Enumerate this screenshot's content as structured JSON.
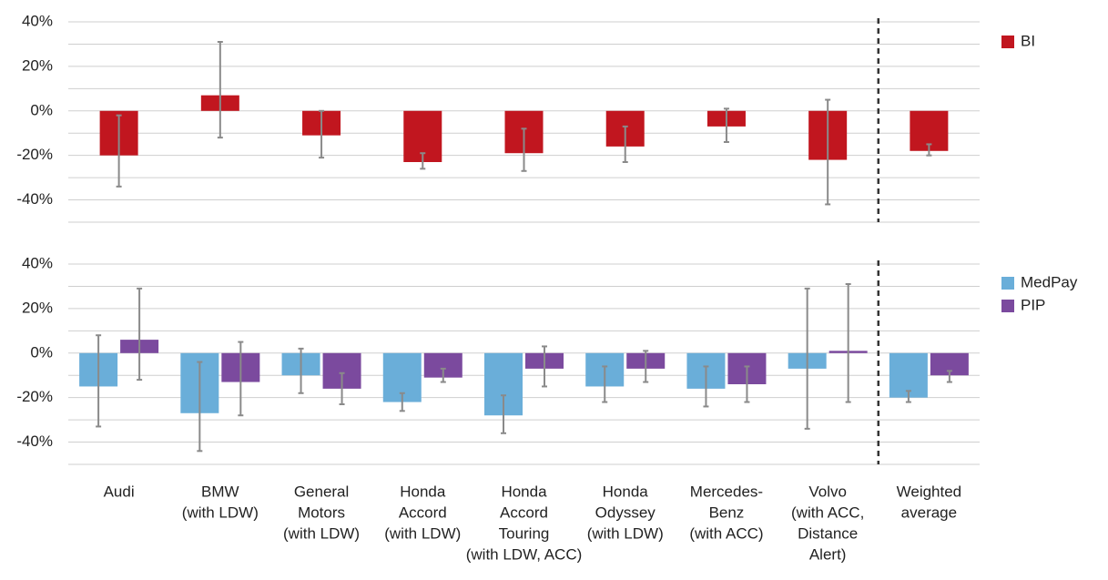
{
  "chart_data": {
    "type": "bar",
    "categories": [
      [
        "Audi"
      ],
      [
        "BMW",
        "(with LDW)"
      ],
      [
        "General",
        "Motors",
        "(with LDW)"
      ],
      [
        "Honda",
        "Accord",
        "(with LDW)"
      ],
      [
        "Honda",
        "Accord",
        "Touring",
        "(with LDW, ACC)"
      ],
      [
        "Honda",
        "Odyssey",
        "(with LDW)"
      ],
      [
        "Mercedes-",
        "Benz",
        "(with ACC)"
      ],
      [
        "Volvo",
        "(with ACC,",
        "Distance",
        "Alert)"
      ],
      [
        "Weighted",
        "average"
      ]
    ],
    "grid": true,
    "panels": [
      {
        "ylim": [
          -50,
          40
        ],
        "yticks": [
          {
            "value": 40,
            "label": "40%"
          },
          {
            "value": 20,
            "label": "20%"
          },
          {
            "value": 0,
            "label": "0%"
          },
          {
            "value": -20,
            "label": "-20%"
          },
          {
            "value": -40,
            "label": "-40%"
          }
        ],
        "minor_yticks": [
          30,
          10,
          -10,
          -30,
          -50
        ],
        "series": [
          {
            "name": "BI",
            "color": "#c1161f",
            "values": [
              -20,
              7,
              -11,
              -23,
              -19,
              -16,
              -7,
              -22,
              -18
            ],
            "ci_low": [
              -34,
              -12,
              -21,
              -26,
              -27,
              -23,
              -14,
              -42,
              -20
            ],
            "ci_high": [
              -2,
              31,
              0,
              -19,
              -8,
              -7,
              1,
              5,
              -15
            ]
          }
        ]
      },
      {
        "ylim": [
          -50,
          40
        ],
        "yticks": [
          {
            "value": 40,
            "label": "40%"
          },
          {
            "value": 20,
            "label": "20%"
          },
          {
            "value": 0,
            "label": "0%"
          },
          {
            "value": -20,
            "label": "-20%"
          },
          {
            "value": -40,
            "label": "-40%"
          }
        ],
        "minor_yticks": [
          30,
          10,
          -10,
          -30,
          -50
        ],
        "series": [
          {
            "name": "MedPay",
            "color": "#6aaed9",
            "values": [
              -15,
              -27,
              -10,
              -22,
              -28,
              -15,
              -16,
              -7,
              -20
            ],
            "ci_low": [
              -33,
              -44,
              -18,
              -26,
              -36,
              -22,
              -24,
              -34,
              -22
            ],
            "ci_high": [
              8,
              -4,
              2,
              -18,
              -19,
              -6,
              -6,
              29,
              -17
            ]
          },
          {
            "name": "PIP",
            "color": "#7b4a9e",
            "values": [
              6,
              -13,
              -16,
              -11,
              -7,
              -7,
              -14,
              1,
              -10
            ],
            "ci_low": [
              -12,
              -28,
              -23,
              -13,
              -15,
              -13,
              -22,
              -22,
              -13
            ],
            "ci_high": [
              29,
              5,
              -9,
              -7,
              3,
              1,
              -6,
              31,
              -8
            ]
          }
        ]
      }
    ]
  }
}
